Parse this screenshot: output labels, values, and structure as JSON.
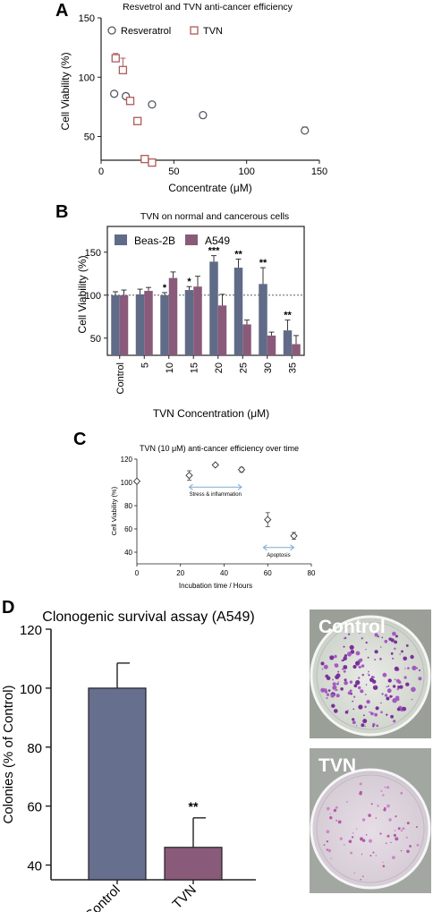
{
  "panels": {
    "a": "A",
    "b": "B",
    "c": "C",
    "d": "D"
  },
  "chart_data": [
    {
      "type": "scatter",
      "title": "Resvetrol and TVN anti-cancer efficiency",
      "xlabel": "Concentrate (μM)",
      "ylabel": "Cell Viability (%)",
      "xlim": [
        0,
        150
      ],
      "ylim": [
        30,
        150
      ],
      "xticks": [
        "0",
        "50",
        "100",
        "150"
      ],
      "yticks": [
        "50",
        "100",
        "150"
      ],
      "legend_position": "top-left",
      "series": [
        {
          "name": "Resveratrol",
          "marker": "circle",
          "color": "#555a66",
          "points": [
            {
              "x": 9,
              "y": 86
            },
            {
              "x": 17,
              "y": 84
            },
            {
              "x": 35,
              "y": 77
            },
            {
              "x": 70,
              "y": 68
            },
            {
              "x": 140,
              "y": 55,
              "err": 3
            }
          ]
        },
        {
          "name": "TVN",
          "marker": "square",
          "color": "#b05a5a",
          "points": [
            {
              "x": 10,
              "y": 116,
              "err": 4
            },
            {
              "x": 15,
              "y": 106,
              "err": 10
            },
            {
              "x": 20,
              "y": 80
            },
            {
              "x": 25,
              "y": 63
            },
            {
              "x": 30,
              "y": 31
            },
            {
              "x": 35,
              "y": 28
            }
          ]
        }
      ]
    },
    {
      "type": "bar",
      "title": "TVN on normal and cancerous cells",
      "xlabel": "TVN Concentration (μM)",
      "ylabel": "Cell Viability (%)",
      "ylim": [
        30,
        180
      ],
      "yticks": [
        "50",
        "100",
        "150"
      ],
      "reference_line": 100,
      "legend_position": "top",
      "categories": [
        "Control",
        "5",
        "10",
        "15",
        "20",
        "25",
        "30",
        "35"
      ],
      "series": [
        {
          "name": "Beas-2B",
          "color": "#606b87",
          "values": [
            100,
            101,
            100,
            106,
            139,
            132,
            113,
            59
          ],
          "errors": [
            4,
            6,
            3,
            4,
            7,
            10,
            19,
            12
          ]
        },
        {
          "name": "A549",
          "color": "#8a5a7a",
          "values": [
            100,
            105,
            120,
            110,
            88,
            66,
            53,
            43
          ],
          "errors": [
            6,
            4,
            7,
            12,
            13,
            5,
            4,
            10
          ]
        }
      ],
      "significance": [
        "",
        "",
        "*",
        "*",
        "***",
        "**",
        "**",
        "**"
      ]
    },
    {
      "type": "scatter",
      "title": "TVN (10 μM) anti-cancer efficiency over time",
      "xlabel": "Incubation time / Hours",
      "ylabel": "Cell Viability (%)",
      "xlim": [
        0,
        80
      ],
      "ylim": [
        30,
        120
      ],
      "xticks": [
        "0",
        "20",
        "40",
        "60",
        "80"
      ],
      "yticks": [
        "40",
        "60",
        "80",
        "100",
        "120"
      ],
      "points": [
        {
          "x": 0,
          "y": 101,
          "err": 0
        },
        {
          "x": 24,
          "y": 106,
          "err": 4
        },
        {
          "x": 36,
          "y": 115,
          "err": 0
        },
        {
          "x": 48,
          "y": 111,
          "err": 2
        },
        {
          "x": 60,
          "y": 68,
          "err": 6
        },
        {
          "x": 72,
          "y": 54,
          "err": 3
        }
      ],
      "annotations": [
        {
          "text": "Stress & inflammation",
          "x_from": 24,
          "x_to": 48,
          "y": 96
        },
        {
          "text": "Apoptosis",
          "x_from": 58,
          "x_to": 72,
          "y": 44
        }
      ]
    },
    {
      "type": "bar",
      "title": "Clonogenic survival assay (A549)",
      "ylabel": "Colonies (% of Control)",
      "ylim": [
        35,
        120
      ],
      "yticks": [
        "40",
        "60",
        "80",
        "100",
        "120"
      ],
      "categories": [
        "Control",
        "TVN"
      ],
      "values": [
        100,
        46
      ],
      "errors": [
        8.5,
        10
      ],
      "colors": [
        "#676f8f",
        "#8a5a7a"
      ],
      "significance": [
        "",
        "**"
      ]
    }
  ],
  "photos": {
    "top_label": "Control",
    "bottom_label": "TVN"
  }
}
